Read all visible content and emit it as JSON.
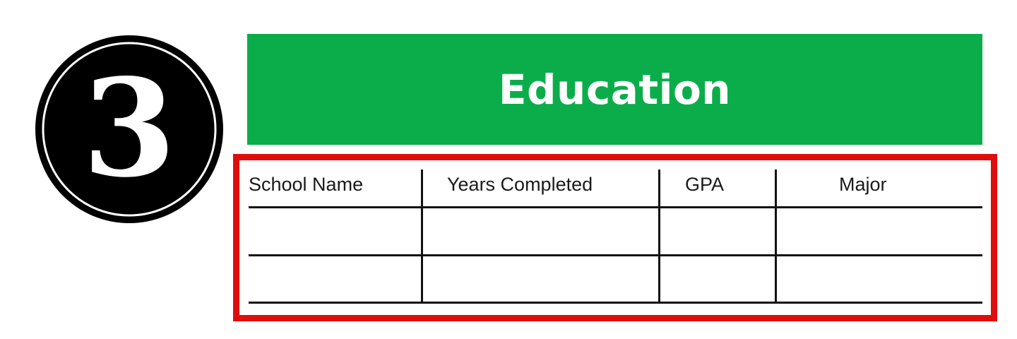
{
  "badge": {
    "number": "3"
  },
  "section": {
    "title": "Education"
  },
  "colors": {
    "banner": "#0bad4b",
    "frame": "#e00d0d",
    "badge": "#000000"
  },
  "table": {
    "headers": [
      "School Name",
      "Years Completed",
      "GPA",
      "Major"
    ],
    "rows": [
      [
        "",
        "",
        "",
        ""
      ],
      [
        "",
        "",
        "",
        ""
      ]
    ]
  }
}
